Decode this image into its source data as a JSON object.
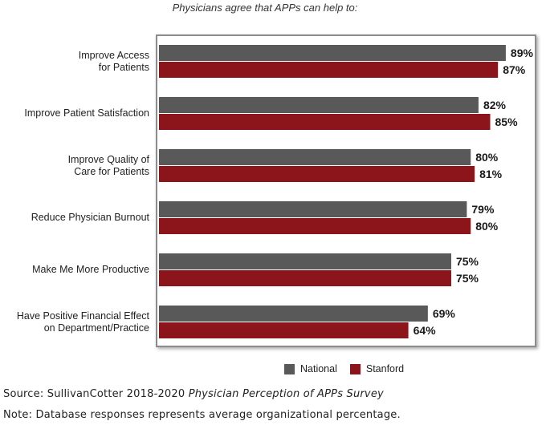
{
  "chart_data": {
    "type": "bar",
    "orientation": "horizontal",
    "title": "Physicians agree that APPs can help to:",
    "categories": [
      "Improve Access\nfor Patients",
      "Improve Patient Satisfaction",
      "Improve Quality of\nCare for Patients",
      "Reduce Physician Burnout",
      "Make Me More Productive",
      "Have Positive Financial Effect\non Department/Practice"
    ],
    "series": [
      {
        "name": "National",
        "color": "#595959",
        "values": [
          89,
          82,
          80,
          79,
          75,
          69
        ],
        "labels": [
          "89%",
          "82%",
          "80%",
          "79%",
          "75%",
          "69%"
        ]
      },
      {
        "name": "Stanford",
        "color": "#8c151b",
        "values": [
          87,
          85,
          81,
          80,
          75,
          64
        ],
        "labels": [
          "87%",
          "85%",
          "81%",
          "80%",
          "75%",
          "64%"
        ]
      }
    ],
    "xlim": [
      0,
      100
    ],
    "grid": false,
    "legend": "bottom-right"
  },
  "footer": {
    "source_prefix": "Source: SullivanCotter 2018-2020 ",
    "source_title": "Physician Perception of APPs Survey",
    "note": "Note: Database responses represents average organizational percentage."
  }
}
